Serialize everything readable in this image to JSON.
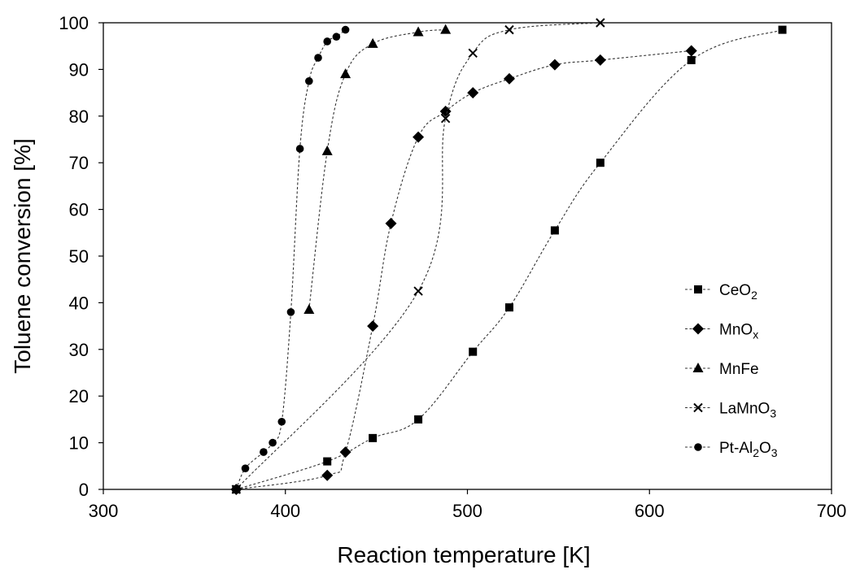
{
  "chart_data": {
    "type": "scatter",
    "xlabel": "Reaction temperature [K]",
    "ylabel": "Toluene conversion [%]",
    "xlim": [
      300,
      700
    ],
    "ylim": [
      0,
      100
    ],
    "xticks": [
      300,
      400,
      500,
      600,
      700
    ],
    "yticks": [
      0,
      10,
      20,
      30,
      40,
      50,
      60,
      70,
      80,
      90,
      100
    ],
    "grid": false,
    "legend_position": "right",
    "line_style": "dotted lines with markers",
    "series": [
      {
        "name": "CeO2",
        "legend_base": "CeO",
        "legend_sub": "2",
        "legend_tail": "",
        "legend_sub2": "",
        "marker": "square",
        "x": [
          373,
          423,
          448,
          473,
          503,
          523,
          548,
          573,
          623,
          673
        ],
        "y": [
          0,
          6,
          11,
          15,
          29.5,
          39,
          55.5,
          70,
          92,
          98.5
        ]
      },
      {
        "name": "MnOx",
        "legend_base": "MnO",
        "legend_sub": "x",
        "legend_tail": "",
        "legend_sub2": "",
        "marker": "diamond",
        "x": [
          373,
          423,
          433,
          448,
          458,
          473,
          488,
          503,
          523,
          548,
          573,
          623
        ],
        "y": [
          0,
          3,
          8,
          35,
          57,
          75.5,
          81,
          85,
          88,
          91,
          92,
          94
        ]
      },
      {
        "name": "MnFe",
        "legend_base": "MnFe",
        "legend_sub": "",
        "legend_tail": "",
        "legend_sub2": "",
        "marker": "triangle",
        "x": [
          413,
          423,
          433,
          448,
          473,
          488
        ],
        "y": [
          38.5,
          72.5,
          89,
          95.5,
          98,
          98.5
        ]
      },
      {
        "name": "LaMnO3",
        "legend_base": "LaMnO",
        "legend_sub": "3",
        "legend_tail": "",
        "legend_sub2": "",
        "marker": "x",
        "x": [
          373,
          473,
          488,
          503,
          523,
          573
        ],
        "y": [
          0,
          42.5,
          79.5,
          93.5,
          98.5,
          100
        ]
      },
      {
        "name": "Pt-Al2O3",
        "legend_base": "Pt-Al",
        "legend_sub": "2",
        "legend_tail": "O",
        "legend_sub2": "3",
        "marker": "circle",
        "x": [
          373,
          378,
          388,
          393,
          398,
          403,
          408,
          413,
          418,
          423,
          428,
          433
        ],
        "y": [
          0,
          4.5,
          8,
          10,
          14.5,
          38,
          73,
          87.5,
          92.5,
          96,
          97,
          98.5
        ]
      }
    ]
  }
}
